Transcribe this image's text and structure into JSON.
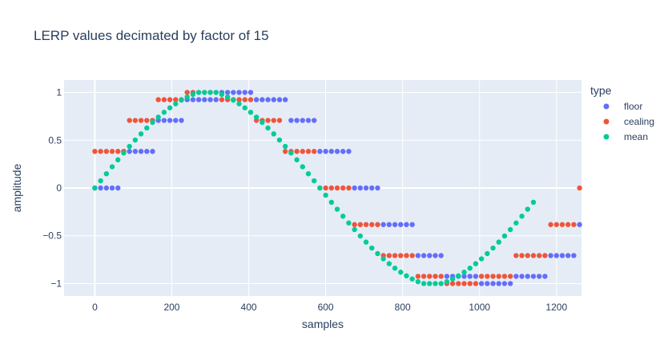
{
  "chart_data": {
    "type": "scatter",
    "title": "LERP values decimated by factor of 15",
    "xlabel": "samples",
    "ylabel": "amplitude",
    "xlim": [
      -80,
      1265
    ],
    "ylim": [
      -1.13,
      1.13
    ],
    "xticks": [
      0,
      200,
      400,
      600,
      800,
      1000,
      1200
    ],
    "yticks": [
      1,
      0.5,
      0,
      -0.5,
      -1
    ],
    "ytick_labels": [
      "1",
      "0.5",
      "0",
      "−0.5",
      "−1"
    ],
    "grid": true,
    "legend": {
      "title": "type",
      "placement": "top-right"
    },
    "x_start": 0,
    "x_step": 15,
    "series": [
      {
        "name": "floor",
        "color": "#636efa",
        "values": [
          0,
          0,
          0,
          0,
          0,
          0.383,
          0.383,
          0.383,
          0.383,
          0.383,
          0.383,
          0.707,
          0.707,
          0.707,
          0.707,
          0.707,
          0.924,
          0.924,
          0.924,
          0.924,
          0.924,
          0.924,
          1,
          1,
          1,
          1,
          1,
          1,
          0.924,
          0.924,
          0.924,
          0.924,
          0.924,
          0.924,
          0.707,
          0.707,
          0.707,
          0.707,
          0.707,
          0.383,
          0.383,
          0.383,
          0.383,
          0.383,
          0.383,
          0,
          0,
          0,
          0,
          0,
          -0.383,
          -0.383,
          -0.383,
          -0.383,
          -0.383,
          -0.383,
          -0.707,
          -0.707,
          -0.707,
          -0.707,
          -0.707,
          -0.924,
          -0.924,
          -0.924,
          -0.924,
          -0.924,
          -0.924,
          -1,
          -1,
          -1,
          -1,
          -1,
          -1,
          -0.924,
          -0.924,
          -0.924,
          -0.924,
          -0.924,
          -0.924,
          -0.707,
          -0.707,
          -0.707,
          -0.707,
          -0.707,
          -0.383
        ]
      },
      {
        "name": "cealing",
        "color": "#ef553b",
        "values": [
          0.383,
          0.383,
          0.383,
          0.383,
          0.383,
          0.383,
          0.707,
          0.707,
          0.707,
          0.707,
          0.707,
          0.924,
          0.924,
          0.924,
          0.924,
          0.924,
          1,
          1,
          1,
          1,
          1,
          1,
          0.924,
          0.924,
          0.924,
          0.924,
          0.924,
          0.924,
          0.707,
          0.707,
          0.707,
          0.707,
          0.707,
          0.383,
          0.383,
          0.383,
          0.383,
          0.383,
          0.383,
          0,
          0,
          0,
          0,
          0,
          0,
          -0.383,
          -0.383,
          -0.383,
          -0.383,
          -0.383,
          -0.707,
          -0.707,
          -0.707,
          -0.707,
          -0.707,
          -0.707,
          -0.924,
          -0.924,
          -0.924,
          -0.924,
          -0.924,
          -1,
          -1,
          -1,
          -1,
          -1,
          -1,
          -0.924,
          -0.924,
          -0.924,
          -0.924,
          -0.924,
          -0.924,
          -0.707,
          -0.707,
          -0.707,
          -0.707,
          -0.707,
          -0.707,
          -0.383,
          -0.383,
          -0.383,
          -0.383,
          -0.383,
          0
        ]
      },
      {
        "name": "mean",
        "color": "#00cc96",
        "values": [
          0,
          0.075,
          0.149,
          0.222,
          0.295,
          0.366,
          0.435,
          0.502,
          0.566,
          0.628,
          0.686,
          0.741,
          0.792,
          0.839,
          0.881,
          0.919,
          0.952,
          0.98,
          1,
          1,
          1,
          1,
          0.98,
          0.952,
          0.919,
          0.881,
          0.839,
          0.792,
          0.741,
          0.686,
          0.628,
          0.566,
          0.502,
          0.435,
          0.366,
          0.295,
          0.222,
          0.149,
          0.075,
          0,
          -0.075,
          -0.149,
          -0.222,
          -0.295,
          -0.366,
          -0.435,
          -0.502,
          -0.566,
          -0.628,
          -0.686,
          -0.741,
          -0.792,
          -0.839,
          -0.881,
          -0.919,
          -0.952,
          -0.98,
          -1,
          -1,
          -1,
          -1,
          -0.98,
          -0.952,
          -0.919,
          -0.881,
          -0.839,
          -0.792,
          -0.741,
          -0.686,
          -0.628,
          -0.566,
          -0.502,
          -0.435,
          -0.366,
          -0.295,
          -0.222,
          -0.149
        ]
      }
    ]
  }
}
